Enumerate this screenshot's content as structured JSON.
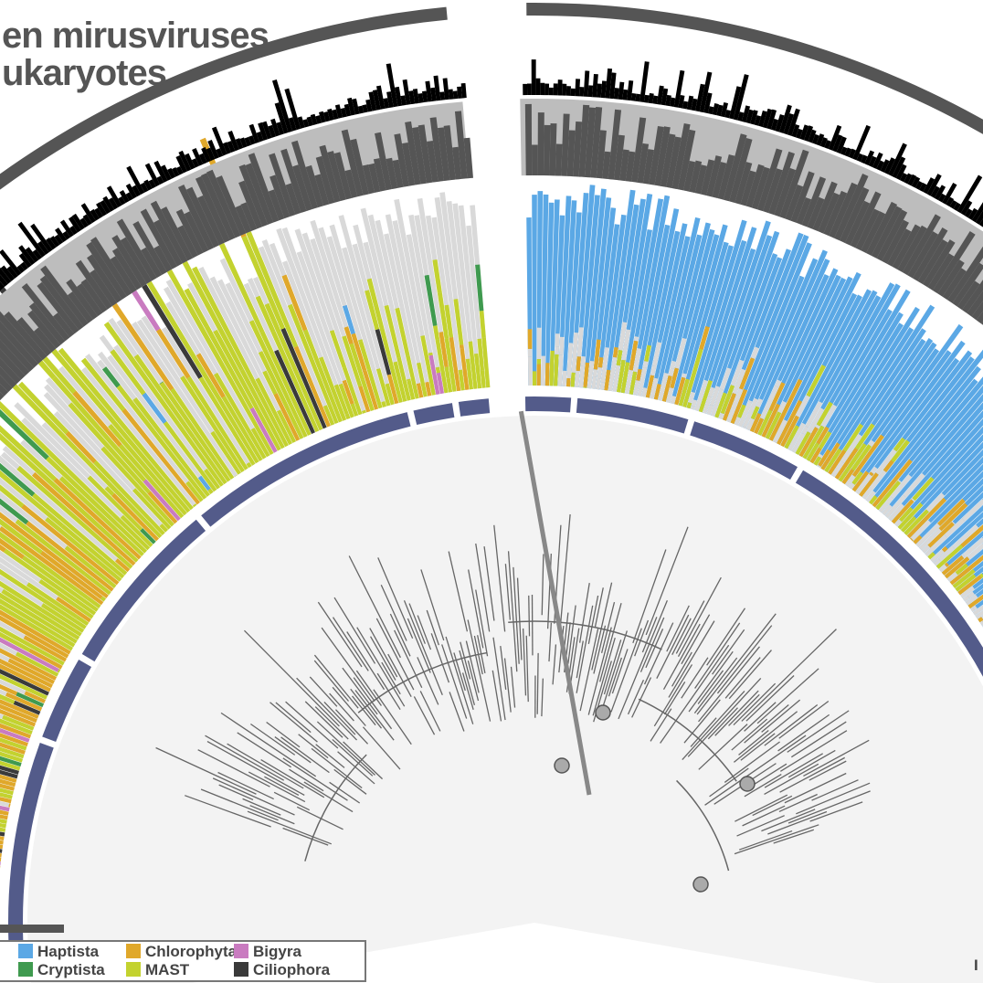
{
  "title_lines": [
    "en mirusviruses",
    "ukaryotes"
  ],
  "legend": [
    {
      "label": "Haptista",
      "color": "#5ba8e5"
    },
    {
      "label": "Chlorophyta",
      "color": "#e0a82a"
    },
    {
      "label": "Bigyra",
      "color": "#c97bc0"
    },
    {
      "label": "Cryptista",
      "color": "#3f9a4f"
    },
    {
      "label": "MAST",
      "color": "#c3d22f"
    },
    {
      "label": "Ciliophora",
      "color": "#3a3a3a"
    }
  ],
  "corner_text": "I"
}
